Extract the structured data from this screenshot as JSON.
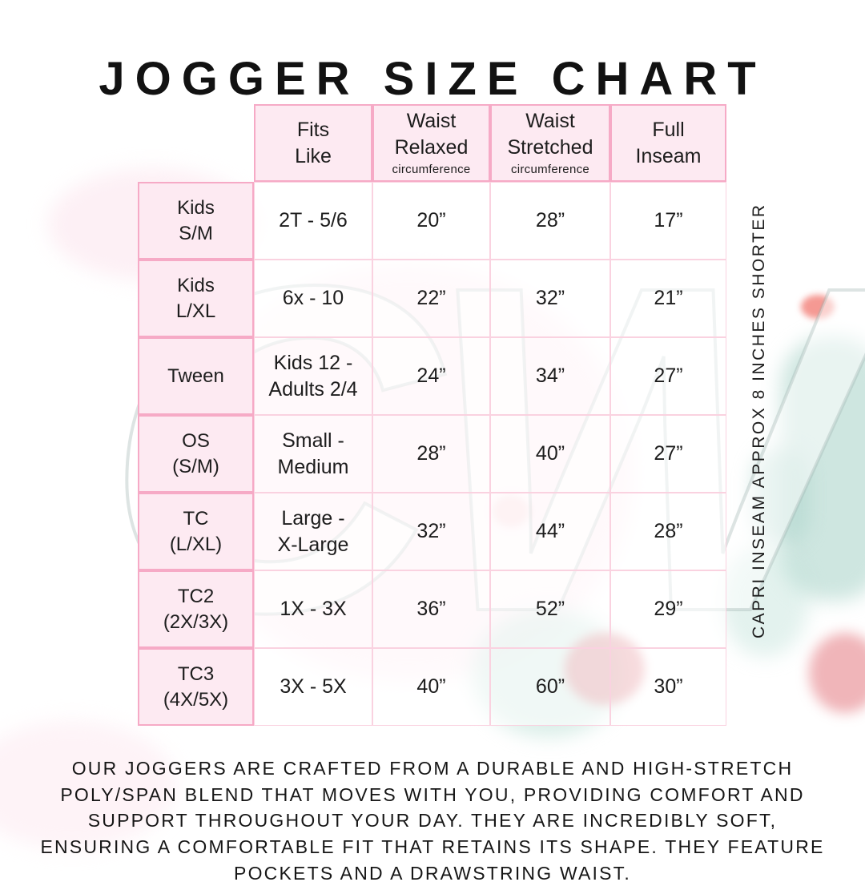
{
  "title": "JOGGER SIZE CHART",
  "watermark_text": "CW",
  "side_note": "CAPRI INSEAM APPROX 8 INCHES SHORTER",
  "description": "OUR JOGGERS ARE CRAFTED FROM A DURABLE AND HIGH-STRETCH\nPOLY/SPAN BLEND THAT MOVES WITH YOU, PROVIDING COMFORT AND\nSUPPORT THROUGHOUT YOUR DAY. THEY ARE INCREDIBLY SOFT,\nENSURING A COMFORTABLE FIT THAT RETAINS ITS SHAPE. THEY FEATURE\nPOCKETS AND A DRAWSTRING WAIST.",
  "colors": {
    "border_strong_pink": "#f6aac6",
    "border_light_pink": "#fad2e0",
    "cell_pink": "#fdeaf2",
    "text": "#1d1d1d"
  },
  "chart_data": {
    "type": "table",
    "title": "JOGGER SIZE CHART",
    "columns": [
      {
        "label": "Fits\nLike",
        "sub": ""
      },
      {
        "label": "Waist\nRelaxed",
        "sub": "circumference"
      },
      {
        "label": "Waist\nStretched",
        "sub": "circumference"
      },
      {
        "label": "Full\nInseam",
        "sub": ""
      }
    ],
    "rows": [
      {
        "label": "Kids\nS/M",
        "values": [
          "2T - 5/6",
          "20”",
          "28”",
          "17”"
        ]
      },
      {
        "label": "Kids\nL/XL",
        "values": [
          "6x - 10",
          "22”",
          "32”",
          "21”"
        ]
      },
      {
        "label": "Tween",
        "values": [
          "Kids 12 -\nAdults 2/4",
          "24”",
          "34”",
          "27”"
        ]
      },
      {
        "label": "OS\n(S/M)",
        "values": [
          "Small -\nMedium",
          "28”",
          "40”",
          "27”"
        ]
      },
      {
        "label": "TC\n(L/XL)",
        "values": [
          "Large -\nX-Large",
          "32”",
          "44”",
          "28”"
        ]
      },
      {
        "label": "TC2\n(2X/3X)",
        "values": [
          "1X - 3X",
          "36”",
          "52”",
          "29”"
        ]
      },
      {
        "label": "TC3\n(4X/5X)",
        "values": [
          "3X - 5X",
          "40”",
          "60”",
          "30”"
        ]
      }
    ]
  }
}
